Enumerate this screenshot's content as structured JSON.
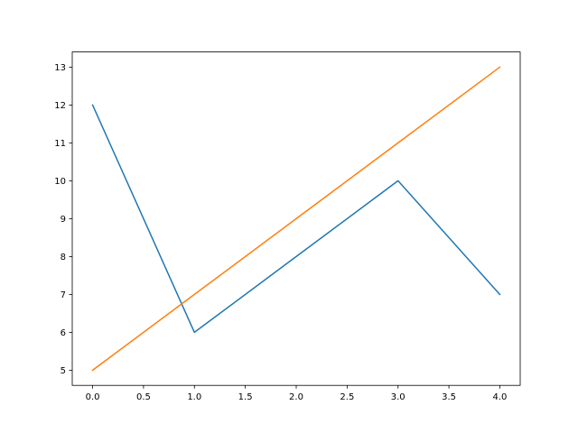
{
  "chart_data": {
    "type": "line",
    "title": "",
    "xlabel": "",
    "ylabel": "",
    "xlim": [
      -0.2,
      4.2
    ],
    "ylim": [
      4.6,
      13.4
    ],
    "grid": false,
    "x": [
      0,
      1,
      2,
      3,
      4
    ],
    "xticks": [
      "0.0",
      "0.5",
      "1.0",
      "1.5",
      "2.0",
      "2.5",
      "3.0",
      "3.5",
      "4.0"
    ],
    "yticks": [
      "5",
      "6",
      "7",
      "8",
      "9",
      "10",
      "11",
      "12",
      "13"
    ],
    "series": [
      {
        "values": [
          12,
          6,
          8,
          10,
          7
        ],
        "color": "#1f77b4"
      },
      {
        "values": [
          5,
          7,
          9,
          11,
          13
        ],
        "color": "#ff7f0e"
      }
    ]
  }
}
